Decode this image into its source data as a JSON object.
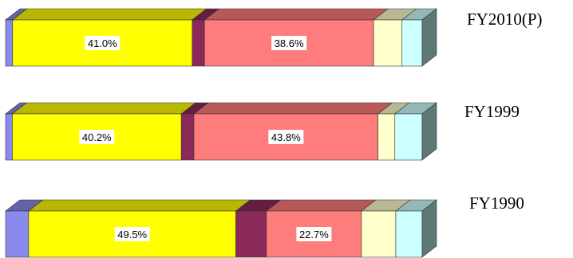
{
  "chart_data": {
    "type": "bar",
    "orientation": "horizontal",
    "stacked": true,
    "three_d": true,
    "categories": [
      "FY2010(P)",
      "FY1999",
      "FY1990"
    ],
    "segment_colors": [
      "#8a8aee",
      "#ffff00",
      "#8b2a58",
      "#ff7c7c",
      "#ffffcc",
      "#ccffff"
    ],
    "bars": [
      {
        "category": "FY2010(P)",
        "segments": [
          1.6,
          41.0,
          2.8,
          38.6,
          6.5,
          4.6
        ],
        "labels": [
          "",
          "41.0%",
          "",
          "38.6%",
          "",
          ""
        ]
      },
      {
        "category": "FY1999",
        "segments": [
          1.6,
          40.2,
          3.0,
          43.8,
          4.0,
          6.5
        ],
        "labels": [
          "",
          "40.2%",
          "",
          "43.8%",
          "",
          ""
        ]
      },
      {
        "category": "FY1990",
        "segments": [
          5.5,
          49.5,
          7.3,
          22.7,
          8.2,
          6.3
        ],
        "labels": [
          "",
          "49.5%",
          "",
          "22.7%",
          "",
          ""
        ]
      }
    ]
  }
}
